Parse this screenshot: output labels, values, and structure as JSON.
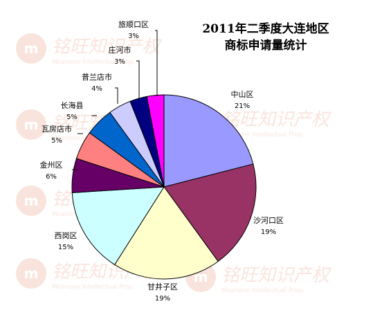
{
  "chart_data": {
    "type": "pie",
    "title_line1": "2011年二季度大连地区",
    "title_line2": "商标申请量统计",
    "slices": [
      {
        "name": "中山区",
        "value": 21,
        "label": "21%",
        "color": "#9999ff"
      },
      {
        "name": "沙河口区",
        "value": 19,
        "label": "19%",
        "color": "#993366"
      },
      {
        "name": "甘井子区",
        "value": 19,
        "label": "19%",
        "color": "#ffffcc"
      },
      {
        "name": "西岗区",
        "value": 15,
        "label": "15%",
        "color": "#ccffff"
      },
      {
        "name": "金州区",
        "value": 6,
        "label": "6%",
        "color": "#660066"
      },
      {
        "name": "瓦房店市",
        "value": 5,
        "label": "5%",
        "color": "#ff8080"
      },
      {
        "name": "长海县",
        "value": 5,
        "label": "5%",
        "color": "#0066cc"
      },
      {
        "name": "普兰店市",
        "value": 4,
        "label": "4%",
        "color": "#ccccff"
      },
      {
        "name": "庄河市",
        "value": 3,
        "label": "3%",
        "color": "#000080"
      },
      {
        "name": "旅顺口区",
        "value": 3,
        "label": "3%",
        "color": "#ff00ff"
      }
    ]
  },
  "watermark": {
    "text": "铭旺知识产权",
    "subtext": "Meanone Intellectual Prop."
  }
}
